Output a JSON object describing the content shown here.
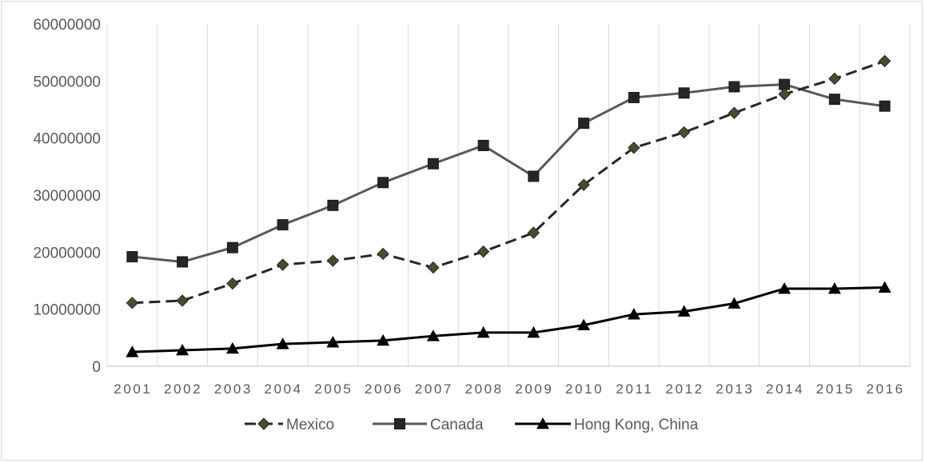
{
  "chart_data": {
    "type": "line",
    "title": "",
    "xlabel": "",
    "ylabel": "",
    "x": [
      "2001",
      "2002",
      "2003",
      "2004",
      "2005",
      "2006",
      "2007",
      "2008",
      "2009",
      "2010",
      "2011",
      "2012",
      "2013",
      "2014",
      "2015",
      "2016"
    ],
    "ylim": [
      0,
      60000000
    ],
    "yticks": [
      0,
      10000000,
      20000000,
      30000000,
      40000000,
      50000000,
      60000000
    ],
    "yticklabels": [
      "0",
      "10000000",
      "20000000",
      "30000000",
      "40000000",
      "50000000",
      "60000000"
    ],
    "grid": "vertical",
    "legend_position": "bottom",
    "series": [
      {
        "name": "Mexico",
        "color": "#262626",
        "marker_color": "#4d4a2e",
        "marker": "diamond",
        "line_style": "dashed",
        "values": [
          11100000,
          11500000,
          14500000,
          17800000,
          18500000,
          19700000,
          17300000,
          20100000,
          23400000,
          31800000,
          38300000,
          41000000,
          44400000,
          47700000,
          50400000,
          53500000
        ]
      },
      {
        "name": "Canada",
        "color": "#595959",
        "marker_color": "#262626",
        "marker": "square",
        "line_style": "solid",
        "values": [
          19200000,
          18300000,
          20800000,
          24800000,
          28200000,
          32200000,
          35500000,
          38700000,
          33300000,
          42600000,
          47100000,
          47900000,
          49000000,
          49400000,
          46800000,
          45600000
        ]
      },
      {
        "name": "Hong Kong, China",
        "color": "#000000",
        "marker_color": "#000000",
        "marker": "triangle",
        "line_style": "solid",
        "values": [
          2500000,
          2800000,
          3100000,
          3900000,
          4200000,
          4500000,
          5300000,
          5900000,
          5900000,
          7200000,
          9100000,
          9600000,
          11000000,
          13600000,
          13600000,
          13800000
        ]
      }
    ]
  }
}
